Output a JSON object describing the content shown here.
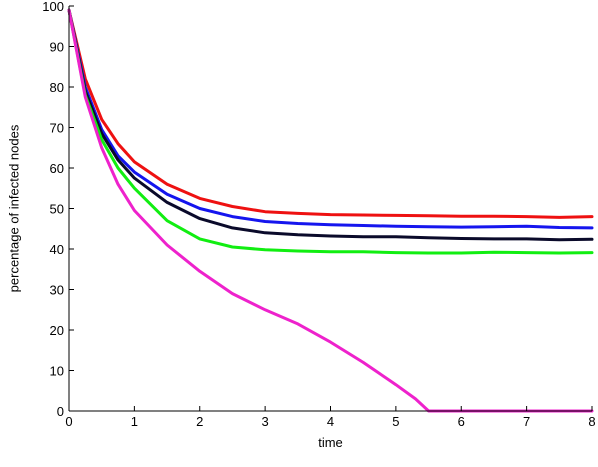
{
  "chart_data": {
    "type": "line",
    "title": "",
    "xlabel": "time",
    "ylabel": "percentage of infected nodes",
    "xlim": [
      0,
      8
    ],
    "ylim": [
      0,
      100
    ],
    "xticks": [
      0,
      1,
      2,
      3,
      4,
      5,
      6,
      7,
      8
    ],
    "yticks": [
      0,
      10,
      20,
      30,
      40,
      50,
      60,
      70,
      80,
      90,
      100
    ],
    "grid": false,
    "legend": false,
    "series": [
      {
        "color": "#ee1111",
        "x": [
          0,
          0.25,
          0.5,
          0.75,
          1,
          1.5,
          2,
          2.5,
          3,
          3.5,
          4,
          4.5,
          5,
          5.5,
          6,
          6.5,
          7,
          7.5,
          8
        ],
        "y": [
          99,
          82,
          72,
          66,
          61.5,
          56,
          52.5,
          50.5,
          49.2,
          48.8,
          48.5,
          48.4,
          48.3,
          48.2,
          48.1,
          48.1,
          48.0,
          47.8,
          48.0
        ]
      },
      {
        "color": "#1515ee",
        "x": [
          0,
          0.25,
          0.5,
          0.75,
          1,
          1.5,
          2,
          2.5,
          3,
          3.5,
          4,
          4.5,
          5,
          5.5,
          6,
          6.5,
          7,
          7.5,
          8
        ],
        "y": [
          99,
          80,
          69.5,
          63,
          59,
          53.5,
          50,
          48,
          46.8,
          46.3,
          46.0,
          45.8,
          45.6,
          45.5,
          45.4,
          45.5,
          45.6,
          45.3,
          45.2
        ]
      },
      {
        "color": "#0a0a2a",
        "x": [
          0,
          0.25,
          0.5,
          0.75,
          1,
          1.5,
          2,
          2.5,
          3,
          3.5,
          4,
          4.5,
          5,
          5.5,
          6,
          6.5,
          7,
          7.5,
          8
        ],
        "y": [
          99,
          79,
          68.5,
          62,
          57.5,
          51.5,
          47.5,
          45.2,
          44.0,
          43.5,
          43.2,
          43.0,
          43.0,
          42.8,
          42.6,
          42.5,
          42.5,
          42.3,
          42.4
        ]
      },
      {
        "color": "#11ee11",
        "x": [
          0,
          0.25,
          0.5,
          0.75,
          1,
          1.5,
          2,
          2.5,
          3,
          3.5,
          4,
          4.5,
          5,
          5.5,
          6,
          6.5,
          7,
          7.5,
          8
        ],
        "y": [
          99,
          78,
          67,
          60,
          55,
          47,
          42.5,
          40.5,
          39.8,
          39.5,
          39.3,
          39.3,
          39.1,
          39.0,
          39.0,
          39.2,
          39.1,
          39.0,
          39.1
        ]
      },
      {
        "color": "#ee22cc",
        "x": [
          0,
          0.25,
          0.5,
          0.75,
          1,
          1.5,
          2,
          2.5,
          3,
          3.5,
          4,
          4.5,
          5,
          5.3,
          5.5,
          6,
          7,
          8
        ],
        "y": [
          99,
          77.5,
          65,
          56,
          49.5,
          41,
          34.5,
          29,
          25,
          21.5,
          17,
          12,
          6.5,
          3,
          0,
          0,
          0,
          0
        ]
      }
    ]
  }
}
